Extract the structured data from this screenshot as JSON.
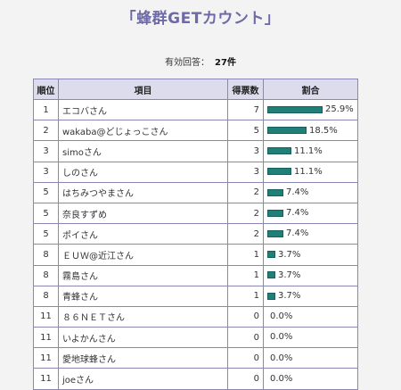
{
  "page": {
    "title": "「蜂群GETカウント」",
    "summary_label": "有効回答：",
    "summary_count": "27件"
  },
  "table": {
    "headers": [
      "順位",
      "項目",
      "得票数",
      "割合"
    ],
    "rows": [
      {
        "rank": "1",
        "item": "エコバさん",
        "votes": "7",
        "pct": "25.9%",
        "ratio": 0.259
      },
      {
        "rank": "2",
        "item": "wakaba@どじょっこさん",
        "votes": "5",
        "pct": "18.5%",
        "ratio": 0.185
      },
      {
        "rank": "3",
        "item": "simoさん",
        "votes": "3",
        "pct": "11.1%",
        "ratio": 0.111
      },
      {
        "rank": "3",
        "item": "しのさん",
        "votes": "3",
        "pct": "11.1%",
        "ratio": 0.111
      },
      {
        "rank": "5",
        "item": "はちみつやまさん",
        "votes": "2",
        "pct": "7.4%",
        "ratio": 0.074
      },
      {
        "rank": "5",
        "item": "奈良すずめ",
        "votes": "2",
        "pct": "7.4%",
        "ratio": 0.074
      },
      {
        "rank": "5",
        "item": "ポイさん",
        "votes": "2",
        "pct": "7.4%",
        "ratio": 0.074
      },
      {
        "rank": "8",
        "item": "ＥＵＷ@近江さん",
        "votes": "1",
        "pct": "3.7%",
        "ratio": 0.037
      },
      {
        "rank": "8",
        "item": "霧島さん",
        "votes": "1",
        "pct": "3.7%",
        "ratio": 0.037
      },
      {
        "rank": "8",
        "item": "青蜂さん",
        "votes": "1",
        "pct": "3.7%",
        "ratio": 0.037
      },
      {
        "rank": "11",
        "item": "８６ＮＥＴさん",
        "votes": "0",
        "pct": "0.0%",
        "ratio": 0.0
      },
      {
        "rank": "11",
        "item": "いよかんさん",
        "votes": "0",
        "pct": "0.0%",
        "ratio": 0.0
      },
      {
        "rank": "11",
        "item": "愛地球蜂さん",
        "votes": "0",
        "pct": "0.0%",
        "ratio": 0.0
      },
      {
        "rank": "11",
        "item": "joeさん",
        "votes": "0",
        "pct": "0.0%",
        "ratio": 0.0
      }
    ]
  },
  "colors": {
    "title": "#6e6aa8",
    "bar": "#1f8078",
    "header_bg": "#dcdcec",
    "border": "#8a87b3"
  }
}
